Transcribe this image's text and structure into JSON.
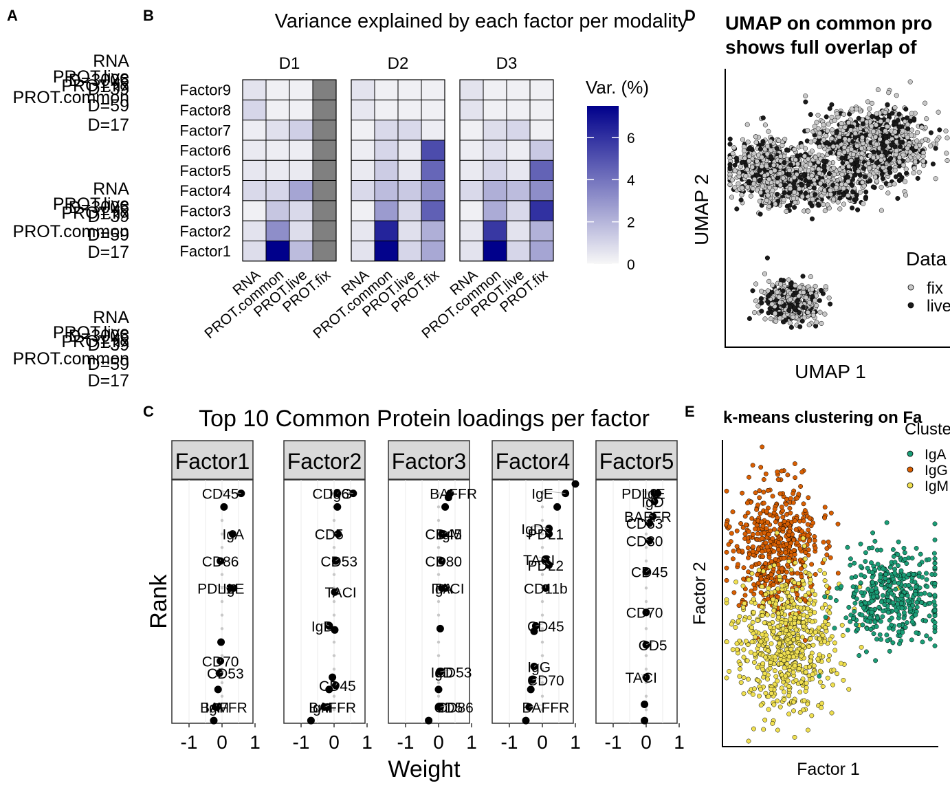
{
  "panel_labels": [
    "A",
    "B",
    "C",
    "D",
    "E"
  ],
  "panelA": {
    "groups": [
      [
        "RNA",
        "PROT.live",
        "D=3006",
        "PROT.fix",
        "D=39",
        "PROT.common",
        "D=59",
        "D=17"
      ],
      [
        "RNA",
        "PROT.live",
        "D=3006",
        "PROT.fix",
        "D=39",
        "PROT.common",
        "D=59",
        "D=17"
      ],
      [
        "RNA",
        "PROT.live",
        "D=3006",
        "PROT.fix",
        "D=39",
        "PROT.common",
        "D=59",
        "D=17"
      ]
    ]
  },
  "panelB": {
    "title": "Variance explained by each factor per modality",
    "legend_title": "Var. (%)",
    "legend_ticks": [
      "0",
      "2",
      "4",
      "6"
    ],
    "colors": {
      "low": "#f7f7f7",
      "high": "#00008b",
      "na": "#808080"
    }
  },
  "panelC": {
    "title": "Top 10  Common Protein loadings per factor",
    "ylabel": "Rank",
    "xlabel": "Weight",
    "xticks": [
      "-1",
      "0",
      "1"
    ]
  },
  "panelD": {
    "title_line1": "UMAP on common pro",
    "title_line2": "shows full overlap of",
    "xlabel": "UMAP 1",
    "ylabel": "UMAP 2",
    "legend_title": "Data",
    "legend_items": [
      "fix",
      "live"
    ],
    "colors": {
      "fix": "#c8c8c8",
      "live": "#1a1a1a"
    }
  },
  "panelE": {
    "title": "k-means clustering on Fa",
    "xlabel": "Factor 1",
    "ylabel": "Factor 2",
    "legend_title": "Cluste",
    "legend_items": [
      "IgA",
      "IgG",
      "IgM"
    ],
    "colors": {
      "IgA": "#1b9e77",
      "IgG": "#d95f02",
      "IgM": "#f0e050"
    }
  },
  "chart_data": [
    {
      "type": "heatmap",
      "title": "Variance explained by each factor per modality",
      "facets": [
        "D1",
        "D2",
        "D3"
      ],
      "columns": [
        "RNA",
        "PROT.common",
        "PROT.live",
        "PROT.fix"
      ],
      "rows": [
        "Factor1",
        "Factor2",
        "Factor3",
        "Factor4",
        "Factor5",
        "Factor6",
        "Factor7",
        "Factor8",
        "Factor9"
      ],
      "legend_title": "Var. (%)",
      "color_range": [
        0,
        7.5
      ],
      "values": [
        [
          [
            0.8,
            7.5,
            1.8,
            null
          ],
          [
            0.6,
            3.2,
            0.8,
            null
          ],
          [
            0.2,
            1.5,
            0.9,
            null
          ],
          [
            0.9,
            1.0,
            2.5,
            null
          ],
          [
            0.5,
            0.4,
            0.4,
            null
          ],
          [
            0.4,
            0.3,
            0.3,
            null
          ],
          [
            0.3,
            0.7,
            1.2,
            null
          ],
          [
            1.0,
            0.2,
            0.2,
            null
          ],
          [
            0.6,
            0.2,
            0.2,
            null
          ]
        ],
        [
          [
            0.6,
            7.4,
            1.0,
            2.4
          ],
          [
            0.5,
            6.4,
            0.7,
            2.2
          ],
          [
            0.2,
            2.8,
            0.9,
            4.6
          ],
          [
            0.9,
            1.8,
            1.4,
            3.0
          ],
          [
            0.4,
            1.3,
            0.5,
            4.4
          ],
          [
            0.3,
            1.0,
            0.4,
            5.2
          ],
          [
            0.2,
            0.9,
            0.9,
            0.3
          ],
          [
            0.5,
            0.2,
            0.2,
            0.2
          ],
          [
            0.6,
            0.2,
            0.2,
            0.2
          ]
        ],
        [
          [
            0.6,
            7.5,
            1.0,
            2.5
          ],
          [
            0.5,
            5.8,
            0.6,
            2.1
          ],
          [
            0.2,
            2.3,
            0.9,
            6.0
          ],
          [
            0.9,
            2.2,
            1.8,
            3.2
          ],
          [
            0.4,
            1.0,
            0.5,
            4.5
          ],
          [
            0.3,
            0.7,
            0.3,
            1.4
          ],
          [
            0.2,
            0.8,
            1.0,
            0.2
          ],
          [
            0.6,
            0.2,
            0.2,
            0.2
          ],
          [
            0.6,
            0.2,
            0.2,
            0.2
          ]
        ]
      ]
    },
    {
      "type": "scatter",
      "title": "Top 10  Common Protein loadings per factor",
      "xlabel": "Weight",
      "ylabel": "Rank",
      "xlim": [
        -1.05,
        1.05
      ],
      "facets": [
        {
          "name": "Factor1",
          "points": [
            {
              "w": 0.58,
              "label": "CD45",
              "lx": -0.05,
              "rank": 1
            },
            {
              "w": 0.06,
              "label": "",
              "rank": 2
            },
            {
              "w": 0.32,
              "label": "IgA",
              "lx": 0.34,
              "rank": 4
            },
            {
              "w": -0.05,
              "label": "CD86",
              "lx": -0.05,
              "rank": 6
            },
            {
              "w": 0.25,
              "label": "PDL1",
              "lx": -0.2,
              "rank": 8
            },
            {
              "w": 0.35,
              "label": "IgE",
              "lx": 0.35,
              "rank": 8
            },
            {
              "w": -0.03,
              "label": "",
              "rank": 12
            },
            {
              "w": -0.05,
              "label": "CD70",
              "lx": -0.05,
              "rank": 13.4
            },
            {
              "w": -0.08,
              "label": "CD53",
              "lx": 0.1,
              "rank": 14.3
            },
            {
              "w": -0.12,
              "label": "",
              "rank": 15.5
            },
            {
              "w": -0.15,
              "label": "BAFFR",
              "lx": 0.05,
              "rank": 16.8
            },
            {
              "w": -0.2,
              "label": "IgM",
              "lx": -0.15,
              "rank": 16.8
            },
            {
              "w": -0.25,
              "label": "",
              "rank": 17.8
            }
          ]
        },
        {
          "name": "Factor2",
          "points": [
            {
              "w": 0.58,
              "label": "CD86",
              "lx": -0.1,
              "rank": 1
            },
            {
              "w": 0.1,
              "label": "IgG",
              "lx": 0.2,
              "rank": 1
            },
            {
              "w": 0.1,
              "label": "",
              "rank": 2
            },
            {
              "w": 0.12,
              "label": "CD5",
              "lx": -0.15,
              "rank": 4
            },
            {
              "w": 0.05,
              "label": "CD53",
              "lx": 0.15,
              "rank": 6
            },
            {
              "w": 0.02,
              "label": "TACI",
              "lx": 0.2,
              "rank": 8.3
            },
            {
              "w": -0.15,
              "label": "IgD",
              "lx": -0.35,
              "rank": 10.8
            },
            {
              "w": 0.02,
              "label": "",
              "rank": 11.1
            },
            {
              "w": 0.05,
              "label": "CD45",
              "lx": 0.1,
              "rank": 15.2
            },
            {
              "w": -0.05,
              "label": "",
              "rank": 14.6
            },
            {
              "w": -0.15,
              "label": "",
              "rank": 15.5
            },
            {
              "w": -0.2,
              "label": "IgM",
              "lx": -0.4,
              "rank": 16.8
            },
            {
              "w": -0.3,
              "label": "BAFFR",
              "lx": -0.05,
              "rank": 16.8
            },
            {
              "w": -0.7,
              "label": "",
              "rank": 17.8
            }
          ]
        },
        {
          "name": "Factor3",
          "points": [
            {
              "w": 0.35,
              "label": "BAFFR",
              "lx": 0.45,
              "rank": 1
            },
            {
              "w": 0.3,
              "label": "",
              "rank": 1.3
            },
            {
              "w": 0.2,
              "label": "",
              "rank": 2
            },
            {
              "w": 0.15,
              "label": "CD45",
              "lx": 0.15,
              "rank": 4
            },
            {
              "w": 0.1,
              "label": "IgM",
              "lx": 0.35,
              "rank": 4
            },
            {
              "w": 0.1,
              "label": "CD80",
              "lx": 0.15,
              "rank": 6
            },
            {
              "w": 0.1,
              "label": "IgA",
              "lx": 0.1,
              "rank": 8
            },
            {
              "w": 0.2,
              "label": "TACI",
              "lx": 0.3,
              "rank": 8
            },
            {
              "w": 0.05,
              "label": "",
              "rank": 11
            },
            {
              "w": 0.05,
              "label": "IgD",
              "lx": 0.1,
              "rank": 14.2
            },
            {
              "w": 0.05,
              "label": "CD53",
              "lx": 0.45,
              "rank": 14.2
            },
            {
              "w": 0.0,
              "label": "",
              "rank": 15.5
            },
            {
              "w": 0.02,
              "label": "CD5",
              "lx": 0.3,
              "rank": 16.8
            },
            {
              "w": 0.05,
              "label": "CD86",
              "lx": 0.5,
              "rank": 16.8
            },
            {
              "w": -0.3,
              "label": "",
              "rank": 17.8
            }
          ]
        },
        {
          "name": "Factor4",
          "points": [
            {
              "w": 1.0,
              "label": "",
              "rank": 0.3
            },
            {
              "w": 0.7,
              "label": "IgE",
              "lx": 0.0,
              "rank": 1
            },
            {
              "w": 0.45,
              "label": "",
              "rank": 2
            },
            {
              "w": 0.2,
              "label": "IgD",
              "lx": -0.3,
              "rank": 3.6
            },
            {
              "w": 0.2,
              "label": "PDL1",
              "lx": 0.1,
              "rank": 4
            },
            {
              "w": 0.1,
              "label": "TACI",
              "lx": -0.1,
              "rank": 5.9
            },
            {
              "w": 0.2,
              "label": "PDL2",
              "lx": 0.1,
              "rank": 6.3
            },
            {
              "w": 0.1,
              "label": "CD11b",
              "lx": 0.1,
              "rank": 8
            },
            {
              "w": -0.2,
              "label": "CD45",
              "lx": 0.1,
              "rank": 10.8
            },
            {
              "w": -0.25,
              "label": "",
              "rank": 11.2
            },
            {
              "w": -0.25,
              "label": "IgG",
              "lx": -0.1,
              "rank": 13.8
            },
            {
              "w": -0.3,
              "label": "CD70",
              "lx": 0.1,
              "rank": 14.8
            },
            {
              "w": -0.35,
              "label": "",
              "rank": 15.5
            },
            {
              "w": -0.4,
              "label": "BAFFR",
              "lx": 0.1,
              "rank": 16.8
            },
            {
              "w": -0.5,
              "label": "",
              "rank": 17.8
            }
          ]
        },
        {
          "name": "Factor5",
          "points": [
            {
              "w": 0.35,
              "label": "PDL2",
              "lx": -0.2,
              "rank": 1
            },
            {
              "w": 0.25,
              "label": "IgE",
              "lx": 0.25,
              "rank": 1
            },
            {
              "w": 0.25,
              "label": "IgD",
              "lx": 0.2,
              "rank": 1.6
            },
            {
              "w": 0.2,
              "label": "BAFFR",
              "lx": 0.05,
              "rank": 2.7
            },
            {
              "w": 0.1,
              "label": "CD53",
              "lx": -0.05,
              "rank": 3.2
            },
            {
              "w": 0.1,
              "label": "CD80",
              "lx": -0.05,
              "rank": 4.5
            },
            {
              "w": 0.0,
              "label": "CD45",
              "lx": 0.1,
              "rank": 6.8
            },
            {
              "w": 0.0,
              "label": "CD70",
              "lx": -0.05,
              "rank": 9.8
            },
            {
              "w": 0.0,
              "label": "CD5",
              "lx": 0.2,
              "rank": 12.2
            },
            {
              "w": 0.0,
              "label": "TACI",
              "lx": -0.15,
              "rank": 14.6
            },
            {
              "w": -0.05,
              "label": "",
              "rank": 16.6
            },
            {
              "w": -0.05,
              "label": "",
              "rank": 17.8
            }
          ]
        }
      ]
    },
    {
      "type": "scatter",
      "title": "UMAP on common pro shows full overlap of",
      "xlabel": "UMAP 1",
      "ylabel": "UMAP 2",
      "series": [
        {
          "name": "fix"
        },
        {
          "name": "live"
        }
      ]
    },
    {
      "type": "scatter",
      "title": "k-means clustering on Fa",
      "xlabel": "Factor 1",
      "ylabel": "Factor 2",
      "series": [
        {
          "name": "IgA"
        },
        {
          "name": "IgG"
        },
        {
          "name": "IgM"
        }
      ]
    }
  ]
}
